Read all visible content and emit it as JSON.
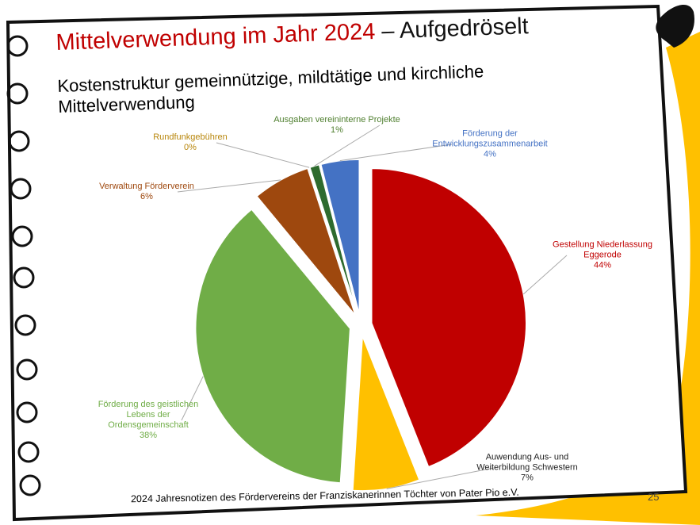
{
  "chart_data": {
    "type": "pie",
    "title": "Mittelverwendung im Jahr 2024",
    "title_suffix": "– Aufgedröselt",
    "subtitle": "Kostenstruktur gemeinnützige, mildtätige und kirchliche Mittelverwendung",
    "categories": [
      "Gestellung Niederlassung Eggerode",
      "Auwendung Aus- und Weiterbildung Schwestern",
      "Förderung des geistlichen Lebens der Ordensgemeinschaft",
      "Verwaltung Förderverein",
      "Rundfunkgebühren",
      "Ausgaben vereininterne Projekte",
      "Förderung der Entwicklungszusammenarbeit"
    ],
    "values": [
      44,
      7,
      38,
      6,
      0,
      1,
      4
    ],
    "value_labels": [
      "44%",
      "7%",
      "38%",
      "6%",
      "0%",
      "1%",
      "4%"
    ],
    "colors": [
      "#c00000",
      "#ffc000",
      "#70ad47",
      "#9e480e",
      "#c9a227",
      "#2e6b2e",
      "#4472c4"
    ],
    "label_colors": [
      "#c00000",
      "#222222",
      "#70ad47",
      "#9e480e",
      "#b8860b",
      "#4f7f2f",
      "#4472c4"
    ],
    "footer": "2024 Jahresnotizen des Fördervereins der Franziskanerinnen Töchter von Pater Pio e.V.",
    "page_number": "25"
  }
}
